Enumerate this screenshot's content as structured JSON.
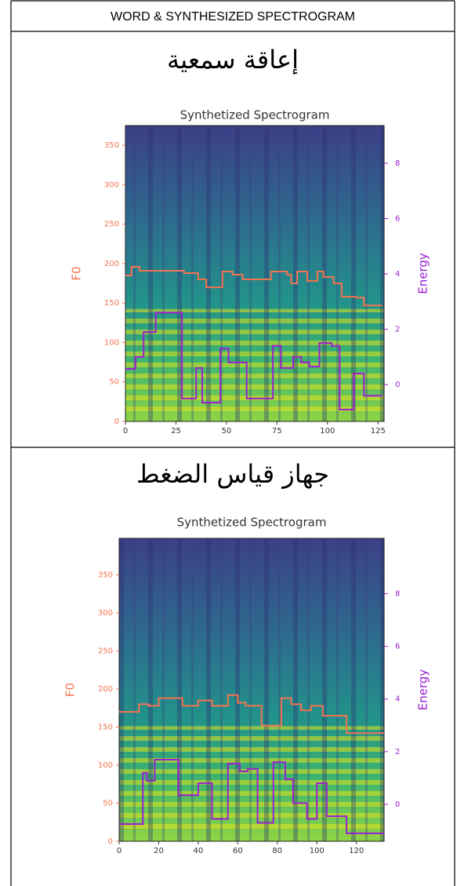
{
  "header": {
    "title": "WORD & SYNTHESIZED SPECTROGRAM"
  },
  "rows": [
    {
      "word": "إعاقة سمعية",
      "chart": {
        "type": "line",
        "title": "Synthetized Spectrogram",
        "ylabel": "F0",
        "y2label": "Energy",
        "xlim": [
          0,
          128
        ],
        "xticks": [
          0,
          25,
          50,
          75,
          100,
          125
        ],
        "ylim": [
          0,
          375
        ],
        "yticks": [
          0,
          50,
          100,
          150,
          200,
          250,
          300,
          350
        ],
        "y2lim": [
          -1.33,
          9.36
        ],
        "y2ticks": [
          0,
          2,
          4,
          6,
          8
        ],
        "series": [
          {
            "color": "#f4734f",
            "axis": "y",
            "x": [
              0,
              3,
              3,
              7,
              7,
              29,
              29,
              36,
              36,
              40,
              40,
              48,
              48,
              53,
              53,
              58,
              58,
              72,
              72,
              80,
              80,
              82,
              82,
              85,
              85,
              90,
              90,
              95,
              95,
              98,
              98,
              103,
              103,
              107,
              107,
              114,
              114,
              118,
              118,
              127
            ],
            "values": [
              185,
              185,
              196,
              196,
              191,
              191,
              188,
              188,
              180,
              180,
              170,
              170,
              190,
              190,
              186,
              186,
              180,
              180,
              190,
              190,
              186,
              186,
              175,
              175,
              190,
              190,
              178,
              178,
              190,
              190,
              183,
              183,
              175,
              175,
              158,
              158,
              157,
              157,
              147,
              147
            ]
          },
          {
            "color": "#9b1fd1",
            "axis": "y2",
            "x": [
              0,
              5,
              5,
              9,
              9,
              15,
              15,
              28,
              28,
              35,
              35,
              38,
              38,
              47,
              47,
              51,
              51,
              60,
              60,
              73,
              73,
              77,
              77,
              83,
              83,
              87,
              87,
              91,
              91,
              96,
              96,
              102,
              102,
              106,
              106,
              113,
              113,
              118,
              118,
              127
            ],
            "values": [
              0.57,
              0.57,
              1.0,
              1.0,
              1.9,
              1.9,
              2.6,
              2.6,
              -0.5,
              -0.5,
              0.6,
              0.6,
              -0.65,
              -0.65,
              1.3,
              1.3,
              0.8,
              0.8,
              -0.5,
              -0.5,
              1.4,
              1.4,
              0.6,
              0.6,
              1.0,
              1.0,
              0.8,
              0.8,
              0.65,
              0.65,
              1.5,
              1.5,
              1.4,
              1.4,
              -0.9,
              -0.9,
              0.4,
              0.4,
              -0.4,
              -0.4
            ]
          }
        ]
      }
    },
    {
      "word": "جهاز قياس الضغط",
      "chart": {
        "type": "line",
        "title": "Synthetized Spectrogram",
        "ylabel": "F0",
        "y2label": "Energy",
        "xlim": [
          0,
          134
        ],
        "xticks": [
          0,
          20,
          40,
          60,
          80,
          100,
          120
        ],
        "ylim": [
          0,
          398
        ],
        "yticks": [
          0,
          50,
          100,
          150,
          200,
          250,
          300,
          350
        ],
        "y2lim": [
          -1.4,
          10.1
        ],
        "y2ticks": [
          0,
          2,
          4,
          6,
          8
        ],
        "series": [
          {
            "color": "#f4734f",
            "axis": "y",
            "x": [
              0,
              10,
              10,
              15,
              15,
              20,
              20,
              32,
              32,
              40,
              40,
              47,
              47,
              55,
              55,
              60,
              60,
              64,
              64,
              72,
              72,
              82,
              82,
              87,
              87,
              92,
              92,
              97,
              97,
              103,
              103,
              115,
              115,
              134
            ],
            "values": [
              170,
              170,
              180,
              180,
              178,
              178,
              188,
              188,
              178,
              178,
              185,
              185,
              178,
              178,
              192,
              192,
              182,
              182,
              178,
              178,
              152,
              152,
              188,
              188,
              180,
              180,
              172,
              172,
              178,
              178,
              165,
              165,
              142,
              142
            ]
          },
          {
            "color": "#9b1fd1",
            "axis": "y2",
            "x": [
              0,
              12,
              12,
              14,
              14,
              18,
              18,
              30,
              30,
              40,
              40,
              47,
              47,
              55,
              55,
              61,
              61,
              65,
              65,
              70,
              70,
              78,
              78,
              84,
              84,
              88,
              88,
              95,
              95,
              100,
              100,
              105,
              105,
              115,
              115,
              134
            ],
            "values": [
              -0.75,
              -0.75,
              1.2,
              1.2,
              0.9,
              0.9,
              1.7,
              1.7,
              0.35,
              0.35,
              0.8,
              0.8,
              -0.55,
              -0.55,
              1.55,
              1.55,
              1.25,
              1.25,
              1.35,
              1.35,
              -0.7,
              -0.7,
              1.6,
              1.6,
              0.95,
              0.95,
              0.05,
              0.05,
              -0.55,
              -0.55,
              0.8,
              0.8,
              -0.45,
              -0.45,
              -1.1,
              -1.1
            ]
          }
        ]
      }
    }
  ]
}
